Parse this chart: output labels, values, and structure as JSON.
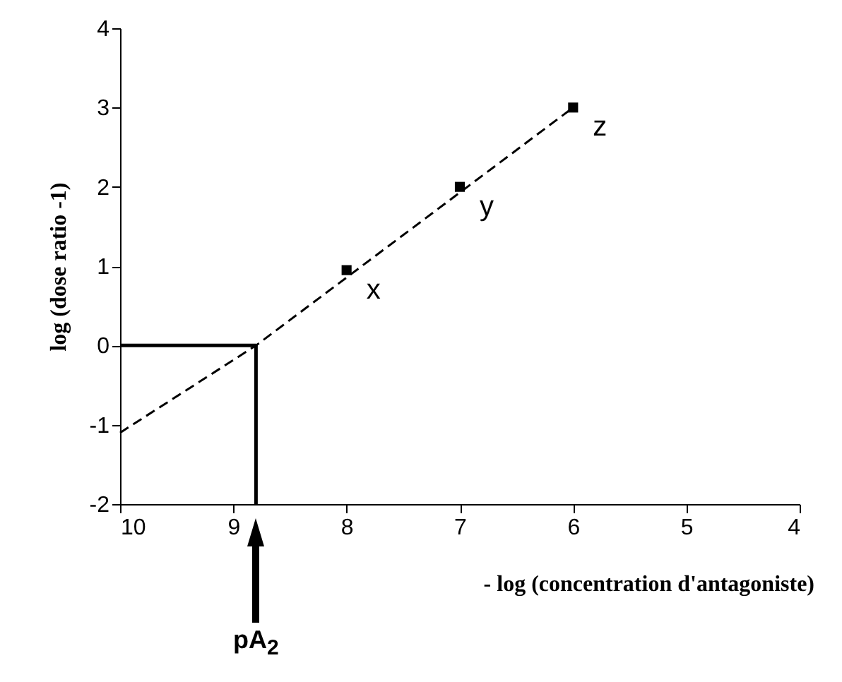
{
  "chart_data": {
    "type": "scatter",
    "xlabel": "- log (concentration d'antagoniste)",
    "ylabel": "log (dose ratio -1)",
    "xlim": [
      10,
      4
    ],
    "xticks": [
      10,
      9,
      8,
      7,
      6,
      5,
      4
    ],
    "ylim": [
      -2,
      4
    ],
    "yticks": [
      -2,
      -1,
      0,
      1,
      2,
      3,
      4
    ],
    "grid": false,
    "series": [
      {
        "type": "line",
        "color": "#000000",
        "line_style": "dashed",
        "marker": "none",
        "x": [
          10,
          8.8,
          6
        ],
        "values": [
          -1.1,
          0,
          3
        ]
      },
      {
        "type": "line",
        "color": "#000000",
        "line_style": "solid",
        "marker": "none",
        "x": [
          10,
          8.8,
          8.8
        ],
        "values": [
          0,
          0,
          -2
        ]
      },
      {
        "color": "#000000",
        "marker": "square",
        "x": [
          8,
          7,
          6
        ],
        "values": [
          0.95,
          2,
          3
        ]
      }
    ],
    "annotations": [
      {
        "text": "x",
        "x": 8,
        "y": 0.95
      },
      {
        "text": "y",
        "x": 7,
        "y": 2
      },
      {
        "text": "z",
        "x": 6,
        "y": 3
      },
      "pA$_{2}$"
    ]
  }
}
